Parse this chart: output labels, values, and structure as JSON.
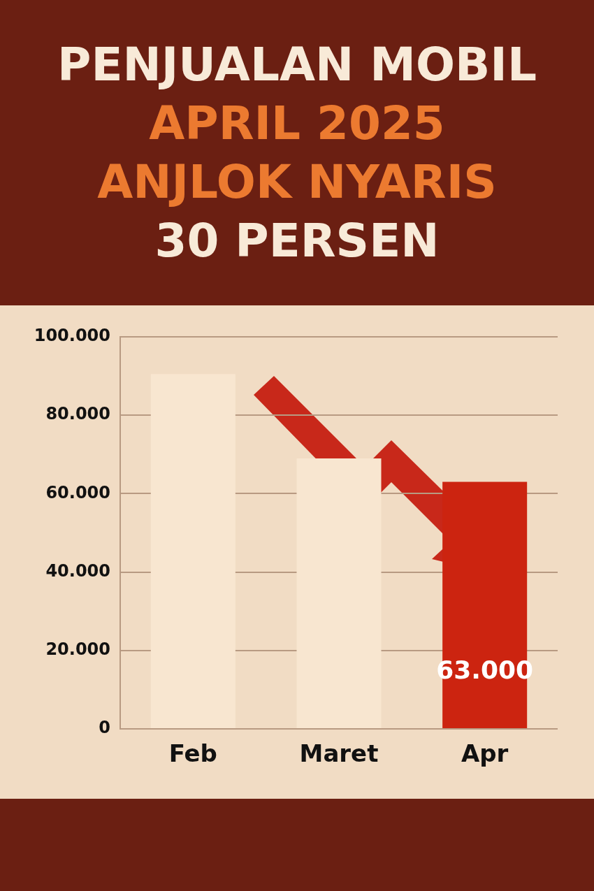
{
  "chart_data": {
    "type": "bar",
    "title": "PENJUALAN MOBIL\nAPRIL 2025\nANJLOK NYARIS\n30 PERSEN",
    "categories": [
      "Feb",
      "Maret",
      "Apr"
    ],
    "values": [
      90500,
      69000,
      63000
    ],
    "colors": [
      "#f8e6d0",
      "#f8e6d0",
      "#cc2410"
    ],
    "value_labels": [
      null,
      null,
      "63.000"
    ],
    "ylim": [
      0,
      100000
    ],
    "yticks": [
      0,
      {
        "value": 20000,
        "label": "20.000"
      },
      {
        "value": 40000,
        "label": "40.000"
      },
      {
        "value": 60000,
        "label": "60.000"
      },
      {
        "value": 80000,
        "label": "80.000"
      },
      {
        "value": 100000,
        "label": "100.000"
      }
    ],
    "grid": "y",
    "legend": false
  }
}
